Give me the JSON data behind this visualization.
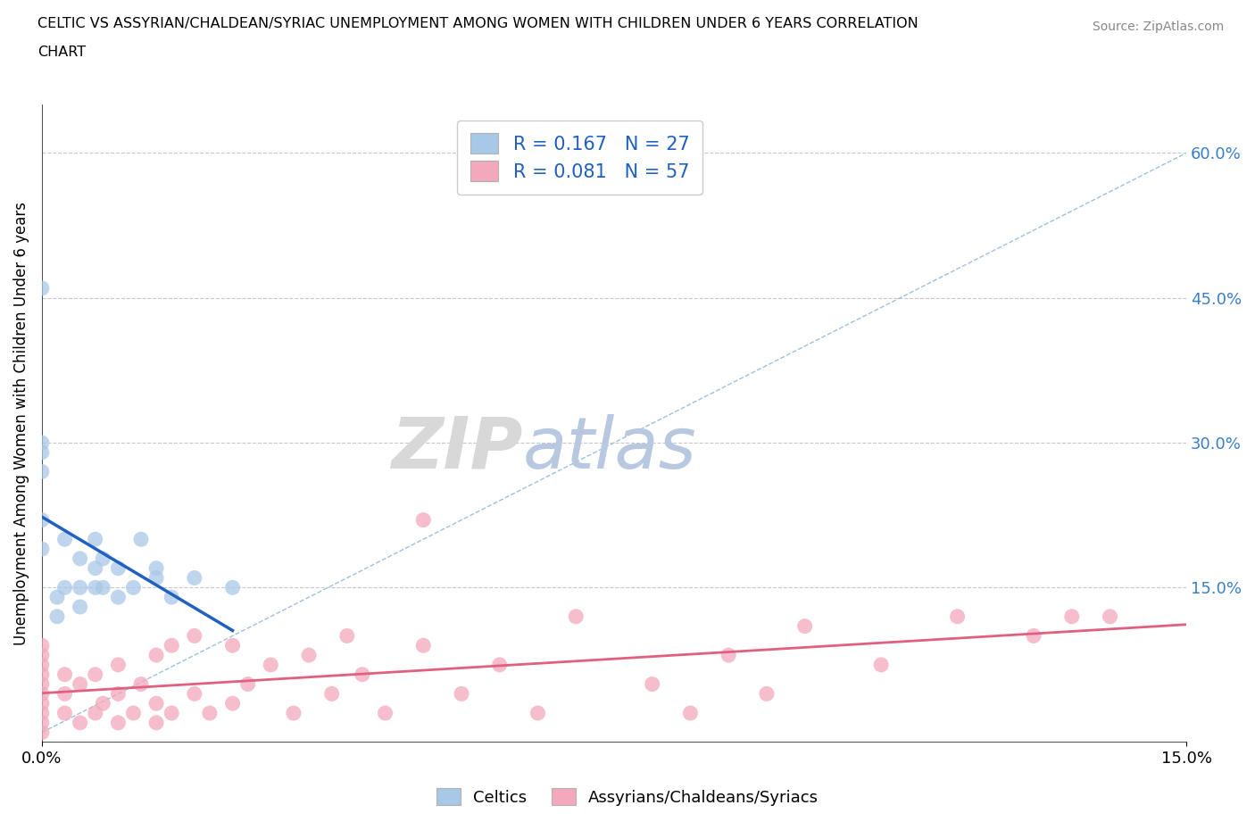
{
  "title_line1": "CELTIC VS ASSYRIAN/CHALDEAN/SYRIAC UNEMPLOYMENT AMONG WOMEN WITH CHILDREN UNDER 6 YEARS CORRELATION",
  "title_line2": "CHART",
  "source": "Source: ZipAtlas.com",
  "ylabel": "Unemployment Among Women with Children Under 6 years",
  "xlim": [
    0.0,
    0.15
  ],
  "ylim": [
    -0.01,
    0.65
  ],
  "xtick_positions": [
    0.0,
    0.15
  ],
  "xtick_labels": [
    "0.0%",
    "15.0%"
  ],
  "ytick_values": [
    0.15,
    0.3,
    0.45,
    0.6
  ],
  "ytick_labels": [
    "15.0%",
    "30.0%",
    "45.0%",
    "60.0%"
  ],
  "watermark_zip": "ZIP",
  "watermark_atlas": "atlas",
  "celtic_color": "#a8c8e8",
  "assyrian_color": "#f4a8bc",
  "celtic_line_color": "#2060c0",
  "assyrian_line_color": "#e06080",
  "R_celtic": 0.167,
  "N_celtic": 27,
  "R_assyrian": 0.081,
  "N_assyrian": 57,
  "celtic_scatter_x": [
    0.0,
    0.0,
    0.0,
    0.0,
    0.0,
    0.0,
    0.002,
    0.002,
    0.003,
    0.003,
    0.005,
    0.005,
    0.005,
    0.007,
    0.007,
    0.007,
    0.008,
    0.008,
    0.01,
    0.01,
    0.012,
    0.013,
    0.015,
    0.015,
    0.017,
    0.02,
    0.025
  ],
  "celtic_scatter_y": [
    0.19,
    0.22,
    0.27,
    0.29,
    0.3,
    0.46,
    0.12,
    0.14,
    0.15,
    0.2,
    0.13,
    0.15,
    0.18,
    0.15,
    0.17,
    0.2,
    0.15,
    0.18,
    0.14,
    0.17,
    0.15,
    0.2,
    0.16,
    0.17,
    0.14,
    0.16,
    0.15
  ],
  "assyrian_scatter_x": [
    0.0,
    0.0,
    0.0,
    0.0,
    0.0,
    0.0,
    0.0,
    0.0,
    0.0,
    0.0,
    0.003,
    0.003,
    0.003,
    0.005,
    0.005,
    0.007,
    0.007,
    0.008,
    0.01,
    0.01,
    0.01,
    0.012,
    0.013,
    0.015,
    0.015,
    0.015,
    0.017,
    0.017,
    0.02,
    0.02,
    0.022,
    0.025,
    0.025,
    0.027,
    0.03,
    0.033,
    0.035,
    0.038,
    0.04,
    0.042,
    0.045,
    0.05,
    0.05,
    0.055,
    0.06,
    0.065,
    0.07,
    0.08,
    0.085,
    0.09,
    0.095,
    0.1,
    0.11,
    0.12,
    0.13,
    0.135,
    0.14
  ],
  "assyrian_scatter_y": [
    0.0,
    0.01,
    0.02,
    0.03,
    0.04,
    0.05,
    0.06,
    0.07,
    0.08,
    0.09,
    0.02,
    0.04,
    0.06,
    0.01,
    0.05,
    0.02,
    0.06,
    0.03,
    0.01,
    0.04,
    0.07,
    0.02,
    0.05,
    0.01,
    0.03,
    0.08,
    0.02,
    0.09,
    0.04,
    0.1,
    0.02,
    0.03,
    0.09,
    0.05,
    0.07,
    0.02,
    0.08,
    0.04,
    0.1,
    0.06,
    0.02,
    0.09,
    0.22,
    0.04,
    0.07,
    0.02,
    0.12,
    0.05,
    0.02,
    0.08,
    0.04,
    0.11,
    0.07,
    0.12,
    0.1,
    0.12,
    0.12
  ]
}
